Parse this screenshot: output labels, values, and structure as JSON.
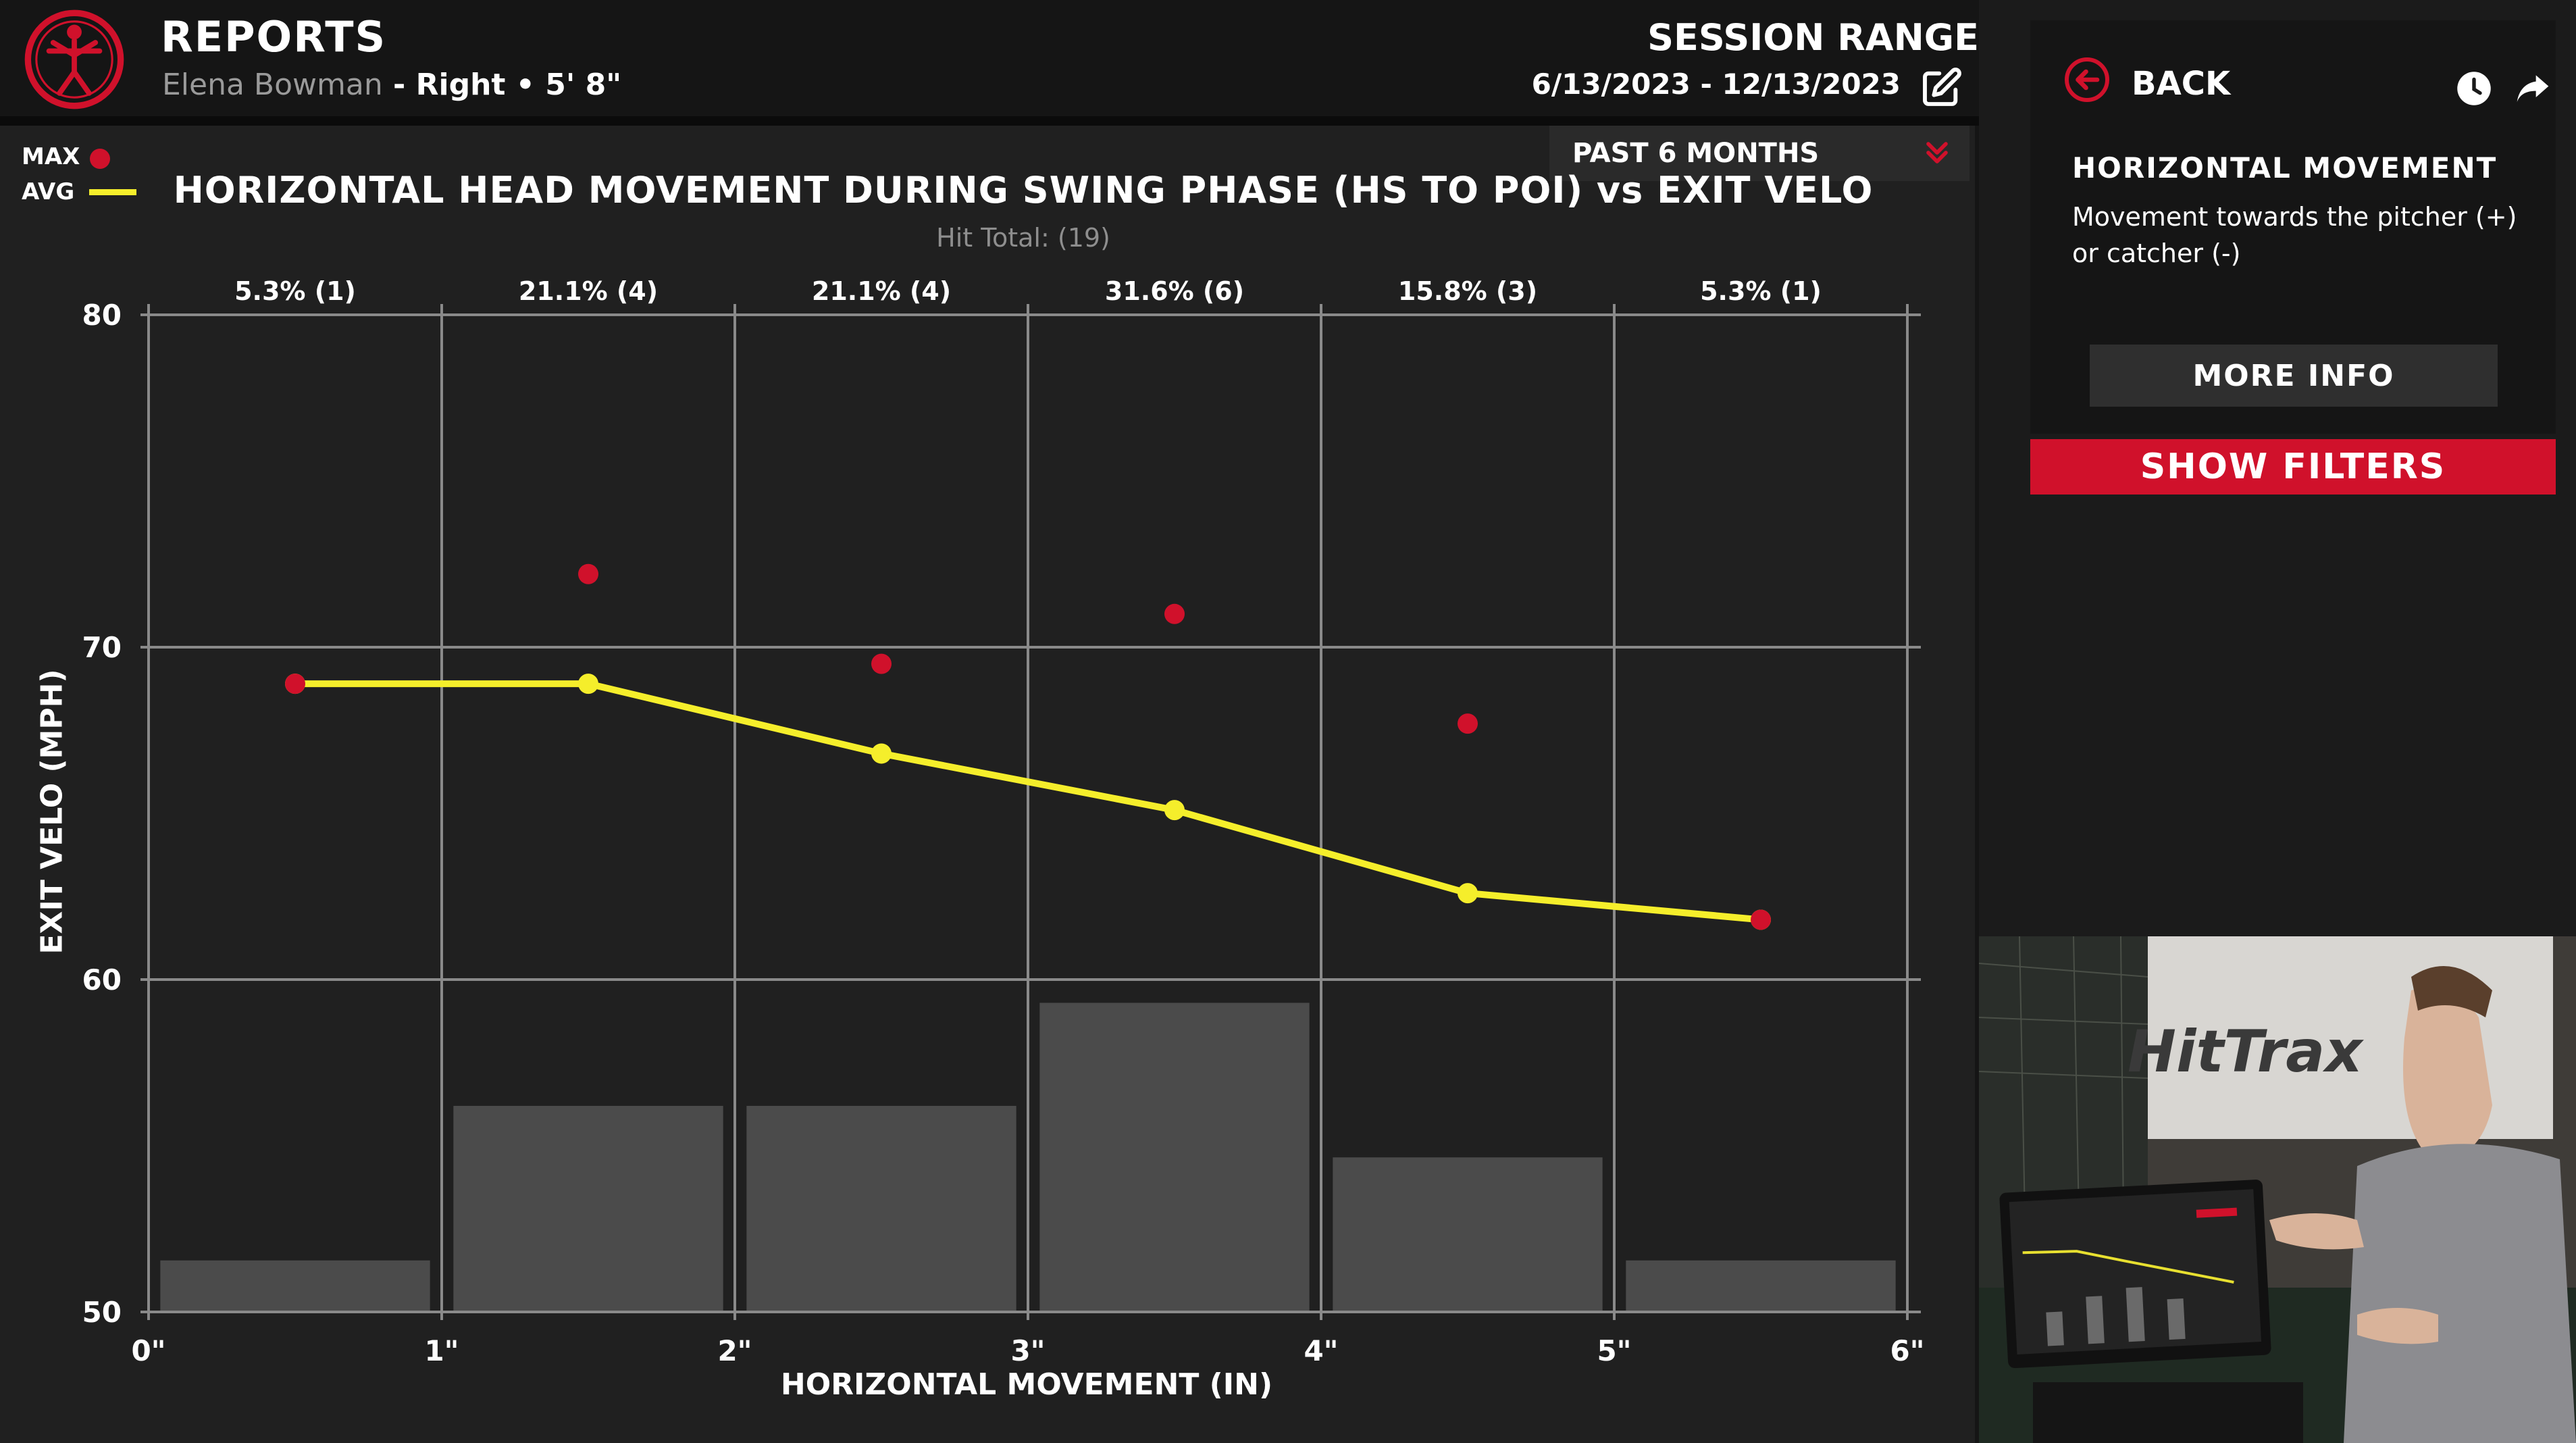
{
  "header": {
    "title": "REPORTS",
    "player_name": "Elena Bowman",
    "player_detail": " - Right • 5' 8\"",
    "session_label": "SESSION RANGE",
    "session_dates": "6/13/2023 - 12/13/2023",
    "range_option": "PAST 6 MONTHS"
  },
  "legend": {
    "max_label": "MAX",
    "avg_label": "AVG"
  },
  "colors": {
    "max": "#d0112b",
    "avg": "#f5ee2b",
    "bars": "#4b4b4b",
    "grid": "#8a8a8a"
  },
  "sidebar": {
    "back_label": "BACK",
    "info_title": "HORIZONTAL MOVEMENT",
    "info_desc": "Movement towards the pitcher (+) or catcher (-)",
    "more_info_label": "MORE INFO",
    "show_filters_label": "SHOW FILTERS"
  },
  "webcam": {
    "sign_text": "HitTrax"
  },
  "chart_data": {
    "type": "line",
    "title": "HORIZONTAL HEAD MOVEMENT DURING SWING PHASE (HS TO POI) vs EXIT VELO",
    "subtitle": "Hit Total: (19)",
    "xlabel": "HORIZONTAL MOVEMENT (IN)",
    "ylabel": "EXIT VELO (MPH)",
    "xlim": [
      0,
      6
    ],
    "ylim": [
      50,
      80
    ],
    "x_ticks": [
      "0\"",
      "1\"",
      "2\"",
      "3\"",
      "4\"",
      "5\"",
      "6\""
    ],
    "y_ticks": [
      "50",
      "60",
      "70",
      "80"
    ],
    "bin_centers": [
      0.5,
      1.5,
      2.5,
      3.5,
      4.5,
      5.5
    ],
    "bin_labels": [
      "5.3% (1)",
      "21.1% (4)",
      "21.1% (4)",
      "31.6% (6)",
      "15.8% (3)",
      "5.3% (1)"
    ],
    "counts": [
      1,
      4,
      4,
      6,
      3,
      1
    ],
    "series": [
      {
        "name": "MAX",
        "values": [
          68.9,
          72.2,
          69.5,
          71.0,
          67.7,
          61.8
        ]
      },
      {
        "name": "AVG",
        "values": [
          68.9,
          68.9,
          66.8,
          65.1,
          62.6,
          61.8
        ]
      }
    ],
    "grid": true,
    "legend_position": "top-left"
  }
}
